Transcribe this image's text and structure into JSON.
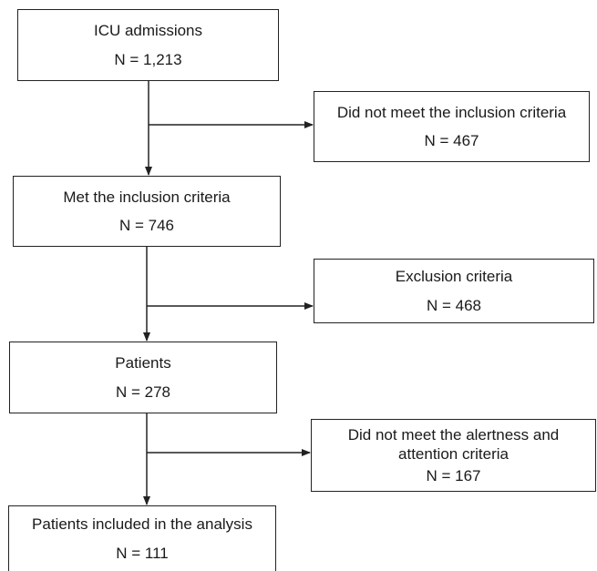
{
  "boxes": {
    "admissions": {
      "label": "ICU admissions",
      "count": "N = 1,213"
    },
    "not_meet_inclusion": {
      "label": "Did not meet the inclusion criteria",
      "count": "N = 467"
    },
    "met_inclusion": {
      "label": "Met the inclusion criteria",
      "count": "N = 746"
    },
    "exclusion": {
      "label": "Exclusion criteria",
      "count": "N = 468"
    },
    "patients": {
      "label": "Patients",
      "count": "N = 278"
    },
    "not_meet_alertness": {
      "label": "Did not meet the alertness and attention criteria",
      "count": "N = 167"
    },
    "analysis": {
      "label": "Patients included in the analysis",
      "count": "N = 111"
    }
  }
}
